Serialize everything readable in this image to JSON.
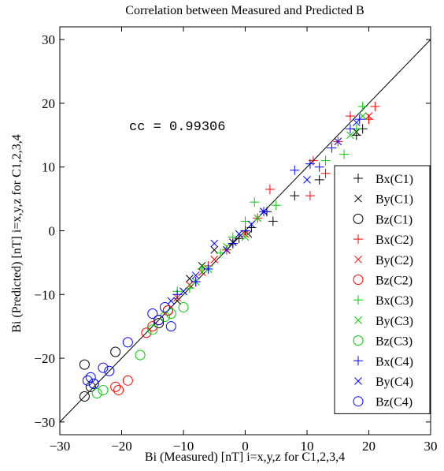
{
  "chart_data": {
    "type": "scatter",
    "title": "Correlation between Measured and Predicted B",
    "xlabel": "Bi (Measured) [nT] i=x,y,z for C1,2,3,4",
    "ylabel": "Bi (Predicted) [nT] i=x,y,z for C1,2,3,4",
    "xlim": [
      -30,
      30
    ],
    "ylim": [
      -32,
      32
    ],
    "xticks": [
      -30,
      -20,
      -10,
      0,
      10,
      20,
      30
    ],
    "yticks": [
      -30,
      -20,
      -10,
      0,
      10,
      20,
      30
    ],
    "grid": false,
    "legend_position": "right",
    "reference_line": "y=x",
    "annotation": "cc = 0.99306",
    "series": [
      {
        "name": "Bx(C1)",
        "marker": "plus",
        "color": "#000000",
        "points": [
          [
            -2,
            -2
          ],
          [
            -1,
            -1.2
          ],
          [
            1,
            0.5
          ],
          [
            3.5,
            3
          ],
          [
            4.5,
            1.5
          ],
          [
            8,
            5.5
          ],
          [
            12,
            8
          ],
          [
            18,
            15
          ],
          [
            19,
            16
          ]
        ]
      },
      {
        "name": "By(C1)",
        "marker": "x",
        "color": "#000000",
        "points": [
          [
            -11,
            -11
          ],
          [
            -9,
            -7.5
          ],
          [
            -7,
            -5.5
          ],
          [
            -5,
            -3
          ],
          [
            -2,
            -1.8
          ],
          [
            0.5,
            -0.5
          ],
          [
            3,
            3
          ],
          [
            18,
            15.5
          ]
        ]
      },
      {
        "name": "Bz(C1)",
        "marker": "circle",
        "color": "#000000",
        "points": [
          [
            -26,
            -21
          ],
          [
            -26,
            -26
          ],
          [
            -25,
            -24.5
          ],
          [
            -24.5,
            -24
          ],
          [
            -21,
            -19
          ],
          [
            -14,
            -14.5
          ],
          [
            -12.5,
            -12.5
          ]
        ]
      },
      {
        "name": "Bx(C2)",
        "marker": "plus",
        "color": "#ff0000",
        "points": [
          [
            -8,
            -8
          ],
          [
            -6,
            -5.5
          ],
          [
            -3,
            -3
          ],
          [
            0,
            0
          ],
          [
            2,
            2
          ],
          [
            4,
            6.5
          ],
          [
            10.5,
            5.5
          ],
          [
            11,
            11
          ],
          [
            13,
            9
          ],
          [
            15,
            14
          ],
          [
            17,
            18
          ],
          [
            20,
            17.5
          ],
          [
            21,
            19.5
          ]
        ]
      },
      {
        "name": "By(C2)",
        "marker": "x",
        "color": "#ff0000",
        "points": [
          [
            -11,
            -10.5
          ],
          [
            -9,
            -8.5
          ],
          [
            -7,
            -6.5
          ],
          [
            -5,
            -4.5
          ],
          [
            -3,
            -3
          ],
          [
            0,
            -0.5
          ],
          [
            20,
            18
          ]
        ]
      },
      {
        "name": "Bz(C2)",
        "marker": "circle",
        "color": "#ff0000",
        "points": [
          [
            -21,
            -24.5
          ],
          [
            -20.5,
            -25
          ],
          [
            -19,
            -23.5
          ],
          [
            -16,
            -16
          ],
          [
            -15,
            -15
          ],
          [
            -14,
            -14
          ],
          [
            -12.5,
            -12.5
          ]
        ]
      },
      {
        "name": "Bx(C3)",
        "marker": "plus",
        "color": "#00cc00",
        "points": [
          [
            -11,
            -9.5
          ],
          [
            -9,
            -9
          ],
          [
            -7,
            -6
          ],
          [
            -4,
            -3.5
          ],
          [
            -2,
            -1
          ],
          [
            0,
            1.5
          ],
          [
            1.5,
            4.5
          ],
          [
            5,
            4
          ],
          [
            13,
            11
          ],
          [
            16,
            12
          ],
          [
            18,
            16
          ],
          [
            19,
            19.5
          ]
        ]
      },
      {
        "name": "By(C3)",
        "marker": "x",
        "color": "#00cc00",
        "points": [
          [
            -10,
            -9.5
          ],
          [
            -8,
            -8
          ],
          [
            -6,
            -6
          ],
          [
            -3,
            -2.5
          ],
          [
            0,
            -1
          ],
          [
            2,
            2
          ],
          [
            17,
            15
          ],
          [
            19,
            18
          ]
        ]
      },
      {
        "name": "Bz(C3)",
        "marker": "circle",
        "color": "#00cc00",
        "points": [
          [
            -24,
            -25.5
          ],
          [
            -23,
            -25
          ],
          [
            -17,
            -19.5
          ],
          [
            -15,
            -15.5
          ],
          [
            -13,
            -13.5
          ],
          [
            -12,
            -13
          ],
          [
            -10,
            -12
          ]
        ]
      },
      {
        "name": "Bx(C4)",
        "marker": "plus",
        "color": "#0000ff",
        "points": [
          [
            -11,
            -10
          ],
          [
            -8,
            -8
          ],
          [
            -6,
            -6
          ],
          [
            -2,
            -2
          ],
          [
            0,
            0
          ],
          [
            3,
            3
          ],
          [
            8,
            9.5
          ],
          [
            10.5,
            10.5
          ],
          [
            12,
            10
          ],
          [
            14,
            13
          ],
          [
            17,
            16
          ],
          [
            18.5,
            17.5
          ]
        ]
      },
      {
        "name": "By(C4)",
        "marker": "x",
        "color": "#0000ff",
        "points": [
          [
            -12,
            -11
          ],
          [
            -10,
            -9.5
          ],
          [
            -8,
            -7
          ],
          [
            -5,
            -2
          ],
          [
            -3,
            -3
          ],
          [
            -1,
            -0.5
          ],
          [
            1,
            1
          ],
          [
            3,
            3
          ],
          [
            10,
            8
          ],
          [
            15,
            14
          ],
          [
            18,
            17
          ]
        ]
      },
      {
        "name": "Bz(C4)",
        "marker": "circle",
        "color": "#0000ff",
        "points": [
          [
            -25.5,
            -23.5
          ],
          [
            -25,
            -23
          ],
          [
            -24.5,
            -24
          ],
          [
            -23,
            -21.5
          ],
          [
            -22,
            -22
          ],
          [
            -19,
            -17.5
          ],
          [
            -15,
            -13
          ],
          [
            -14,
            -14
          ],
          [
            -13,
            -12
          ],
          [
            -12,
            -15
          ]
        ]
      }
    ]
  }
}
